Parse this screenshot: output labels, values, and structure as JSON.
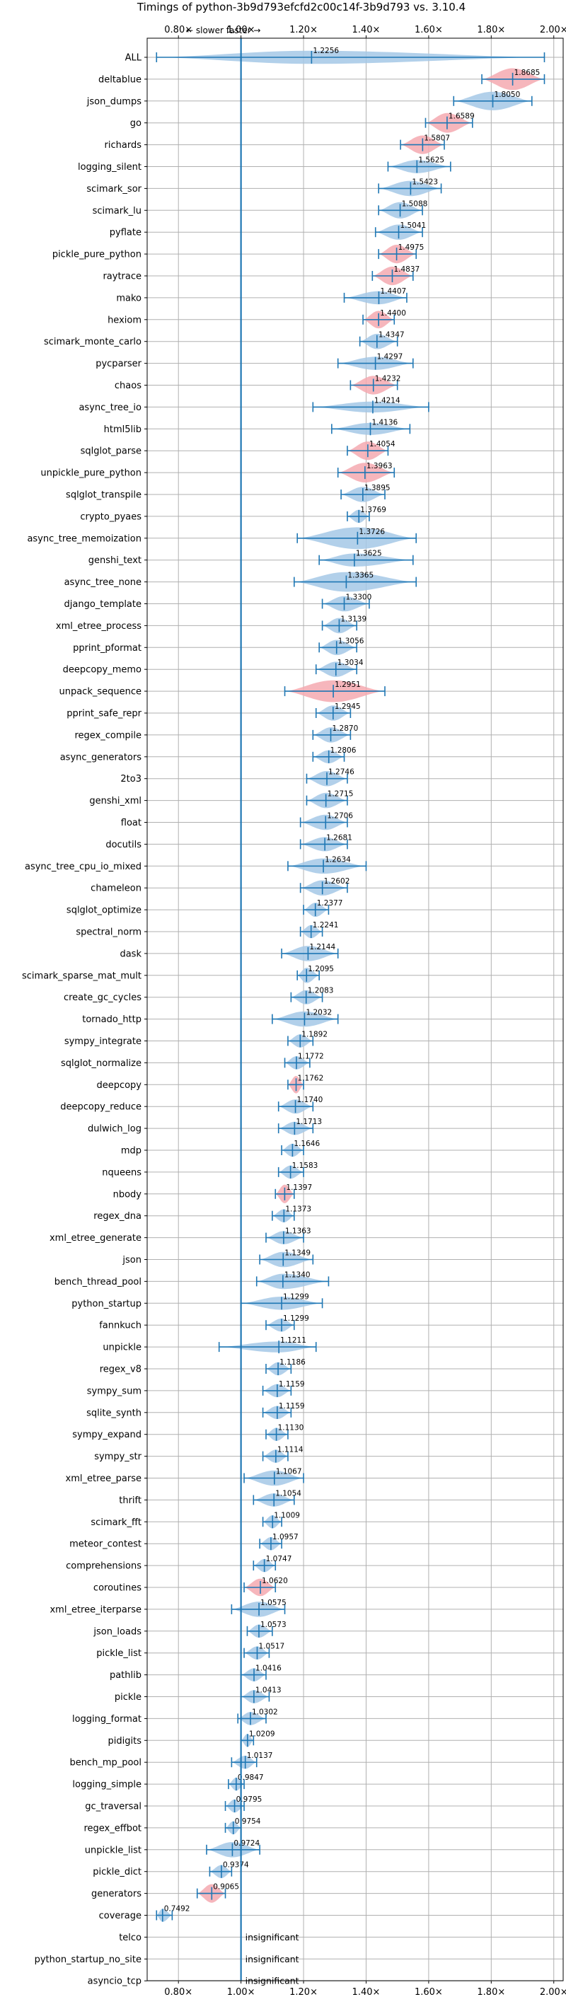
{
  "chart_data": {
    "type": "violin",
    "title": "Timings of python-3b9d793efcfd2c00c14f-3b9d793 vs. 3.10.4",
    "annotation": "← slower  faster →",
    "x_ticks": [
      "0.80×",
      "1.00×",
      "1.20×",
      "1.40×",
      "1.60×",
      "1.80×",
      "2.00×"
    ],
    "x_tick_values": [
      0.8,
      1.0,
      1.2,
      1.4,
      1.6,
      1.8,
      2.0
    ],
    "xlim": [
      0.7,
      2.03
    ],
    "reference_x": 1.0,
    "grid": true,
    "colors": {
      "faster": "#a4c8e6",
      "slower": "#f4a9b0",
      "line": "#1f77b4",
      "grid": "#b0b0b0"
    },
    "insignificant_label": "insignificant",
    "benchmarks": [
      {
        "name": "ALL",
        "value": "1.2256",
        "mean": 1.2256,
        "min": 0.73,
        "max": 1.97,
        "h": 0.6,
        "color": "faster"
      },
      {
        "name": "deltablue",
        "value": "1.8685",
        "mean": 1.8685,
        "min": 1.77,
        "max": 1.97,
        "h": 1.0,
        "color": "slower"
      },
      {
        "name": "json_dumps",
        "value": "1.8050",
        "mean": 1.805,
        "min": 1.68,
        "max": 1.93,
        "h": 0.85,
        "color": "faster"
      },
      {
        "name": "go",
        "value": "1.6589",
        "mean": 1.6589,
        "min": 1.59,
        "max": 1.74,
        "h": 0.9,
        "color": "slower"
      },
      {
        "name": "richards",
        "value": "1.5807",
        "mean": 1.5807,
        "min": 1.51,
        "max": 1.65,
        "h": 0.85,
        "color": "slower"
      },
      {
        "name": "logging_silent",
        "value": "1.5625",
        "mean": 1.5625,
        "min": 1.47,
        "max": 1.67,
        "h": 0.6,
        "color": "faster"
      },
      {
        "name": "scimark_sor",
        "value": "1.5423",
        "mean": 1.5423,
        "min": 1.44,
        "max": 1.64,
        "h": 0.7,
        "color": "faster"
      },
      {
        "name": "scimark_lu",
        "value": "1.5088",
        "mean": 1.5088,
        "min": 1.44,
        "max": 1.58,
        "h": 0.75,
        "color": "faster"
      },
      {
        "name": "pyflate",
        "value": "1.5041",
        "mean": 1.5041,
        "min": 1.43,
        "max": 1.58,
        "h": 0.7,
        "color": "faster"
      },
      {
        "name": "pickle_pure_python",
        "value": "1.4975",
        "mean": 1.4975,
        "min": 1.44,
        "max": 1.56,
        "h": 0.85,
        "color": "slower"
      },
      {
        "name": "raytrace",
        "value": "1.4837",
        "mean": 1.4837,
        "min": 1.42,
        "max": 1.55,
        "h": 0.85,
        "color": "slower"
      },
      {
        "name": "mako",
        "value": "1.4407",
        "mean": 1.4407,
        "min": 1.33,
        "max": 1.53,
        "h": 0.6,
        "color": "faster"
      },
      {
        "name": "hexiom",
        "value": "1.4400",
        "mean": 1.44,
        "min": 1.39,
        "max": 1.49,
        "h": 0.8,
        "color": "slower"
      },
      {
        "name": "scimark_monte_carlo",
        "value": "1.4347",
        "mean": 1.4347,
        "min": 1.38,
        "max": 1.5,
        "h": 0.7,
        "color": "faster"
      },
      {
        "name": "pycparser",
        "value": "1.4297",
        "mean": 1.4297,
        "min": 1.31,
        "max": 1.55,
        "h": 0.6,
        "color": "faster"
      },
      {
        "name": "chaos",
        "value": "1.4232",
        "mean": 1.4232,
        "min": 1.35,
        "max": 1.5,
        "h": 0.85,
        "color": "slower"
      },
      {
        "name": "async_tree_io",
        "value": "1.4214",
        "mean": 1.4214,
        "min": 1.23,
        "max": 1.6,
        "h": 0.5,
        "color": "faster"
      },
      {
        "name": "html5lib",
        "value": "1.4136",
        "mean": 1.4136,
        "min": 1.29,
        "max": 1.54,
        "h": 0.55,
        "color": "faster"
      },
      {
        "name": "sqlglot_parse",
        "value": "1.4054",
        "mean": 1.4054,
        "min": 1.34,
        "max": 1.47,
        "h": 0.85,
        "color": "slower"
      },
      {
        "name": "unpickle_pure_python",
        "value": "1.3963",
        "mean": 1.3963,
        "min": 1.31,
        "max": 1.49,
        "h": 0.9,
        "color": "slower"
      },
      {
        "name": "sqlglot_transpile",
        "value": "1.3895",
        "mean": 1.3895,
        "min": 1.32,
        "max": 1.46,
        "h": 0.7,
        "color": "faster"
      },
      {
        "name": "crypto_pyaes",
        "value": "1.3769",
        "mean": 1.3769,
        "min": 1.34,
        "max": 1.41,
        "h": 0.6,
        "color": "faster"
      },
      {
        "name": "async_tree_memoization",
        "value": "1.3726",
        "mean": 1.3726,
        "min": 1.18,
        "max": 1.56,
        "h": 1.0,
        "color": "faster"
      },
      {
        "name": "genshi_text",
        "value": "1.3625",
        "mean": 1.3625,
        "min": 1.25,
        "max": 1.55,
        "h": 0.6,
        "color": "faster"
      },
      {
        "name": "async_tree_none",
        "value": "1.3365",
        "mean": 1.3365,
        "min": 1.17,
        "max": 1.56,
        "h": 0.9,
        "color": "faster"
      },
      {
        "name": "django_template",
        "value": "1.3300",
        "mean": 1.33,
        "min": 1.26,
        "max": 1.41,
        "h": 0.7,
        "color": "faster"
      },
      {
        "name": "xml_etree_process",
        "value": "1.3139",
        "mean": 1.3139,
        "min": 1.26,
        "max": 1.37,
        "h": 0.7,
        "color": "faster"
      },
      {
        "name": "pprint_pformat",
        "value": "1.3056",
        "mean": 1.3056,
        "min": 1.25,
        "max": 1.37,
        "h": 0.7,
        "color": "faster"
      },
      {
        "name": "deepcopy_memo",
        "value": "1.3034",
        "mean": 1.3034,
        "min": 1.24,
        "max": 1.37,
        "h": 0.7,
        "color": "faster"
      },
      {
        "name": "unpack_sequence",
        "value": "1.2951",
        "mean": 1.2951,
        "min": 1.14,
        "max": 1.46,
        "h": 1.0,
        "color": "slower"
      },
      {
        "name": "pprint_safe_repr",
        "value": "1.2945",
        "mean": 1.2945,
        "min": 1.24,
        "max": 1.35,
        "h": 0.7,
        "color": "faster"
      },
      {
        "name": "regex_compile",
        "value": "1.2870",
        "mean": 1.287,
        "min": 1.23,
        "max": 1.35,
        "h": 0.7,
        "color": "faster"
      },
      {
        "name": "async_generators",
        "value": "1.2806",
        "mean": 1.2806,
        "min": 1.23,
        "max": 1.33,
        "h": 0.6,
        "color": "faster"
      },
      {
        "name": "2to3",
        "value": "1.2746",
        "mean": 1.2746,
        "min": 1.21,
        "max": 1.34,
        "h": 0.7,
        "color": "faster"
      },
      {
        "name": "genshi_xml",
        "value": "1.2715",
        "mean": 1.2715,
        "min": 1.21,
        "max": 1.34,
        "h": 0.7,
        "color": "faster"
      },
      {
        "name": "float",
        "value": "1.2706",
        "mean": 1.2706,
        "min": 1.19,
        "max": 1.34,
        "h": 0.7,
        "color": "faster"
      },
      {
        "name": "docutils",
        "value": "1.2681",
        "mean": 1.2681,
        "min": 1.19,
        "max": 1.34,
        "h": 0.65,
        "color": "faster"
      },
      {
        "name": "async_tree_cpu_io_mixed",
        "value": "1.2634",
        "mean": 1.2634,
        "min": 1.15,
        "max": 1.4,
        "h": 0.7,
        "color": "faster"
      },
      {
        "name": "chameleon",
        "value": "1.2602",
        "mean": 1.2602,
        "min": 1.19,
        "max": 1.34,
        "h": 0.7,
        "color": "faster"
      },
      {
        "name": "sqlglot_optimize",
        "value": "1.2377",
        "mean": 1.2377,
        "min": 1.2,
        "max": 1.28,
        "h": 0.65,
        "color": "faster"
      },
      {
        "name": "spectral_norm",
        "value": "1.2241",
        "mean": 1.2241,
        "min": 1.19,
        "max": 1.26,
        "h": 0.6,
        "color": "faster"
      },
      {
        "name": "dask",
        "value": "1.2144",
        "mean": 1.2144,
        "min": 1.13,
        "max": 1.31,
        "h": 0.7,
        "color": "faster"
      },
      {
        "name": "scimark_sparse_mat_mult",
        "value": "1.2095",
        "mean": 1.2095,
        "min": 1.18,
        "max": 1.25,
        "h": 0.7,
        "color": "faster"
      },
      {
        "name": "create_gc_cycles",
        "value": "1.2083",
        "mean": 1.2083,
        "min": 1.16,
        "max": 1.26,
        "h": 0.65,
        "color": "faster"
      },
      {
        "name": "tornado_http",
        "value": "1.2032",
        "mean": 1.2032,
        "min": 1.1,
        "max": 1.31,
        "h": 0.7,
        "color": "faster"
      },
      {
        "name": "sympy_integrate",
        "value": "1.1892",
        "mean": 1.1892,
        "min": 1.15,
        "max": 1.23,
        "h": 0.6,
        "color": "faster"
      },
      {
        "name": "sqlglot_normalize",
        "value": "1.1772",
        "mean": 1.1772,
        "min": 1.14,
        "max": 1.22,
        "h": 0.6,
        "color": "faster"
      },
      {
        "name": "deepcopy",
        "value": "1.1762",
        "mean": 1.1762,
        "min": 1.15,
        "max": 1.2,
        "h": 0.8,
        "color": "slower"
      },
      {
        "name": "deepcopy_reduce",
        "value": "1.1740",
        "mean": 1.174,
        "min": 1.12,
        "max": 1.23,
        "h": 0.65,
        "color": "faster"
      },
      {
        "name": "dulwich_log",
        "value": "1.1713",
        "mean": 1.1713,
        "min": 1.12,
        "max": 1.23,
        "h": 0.6,
        "color": "faster"
      },
      {
        "name": "mdp",
        "value": "1.1646",
        "mean": 1.1646,
        "min": 1.13,
        "max": 1.2,
        "h": 0.6,
        "color": "faster"
      },
      {
        "name": "nqueens",
        "value": "1.1583",
        "mean": 1.1583,
        "min": 1.12,
        "max": 1.2,
        "h": 0.6,
        "color": "faster"
      },
      {
        "name": "nbody",
        "value": "1.1397",
        "mean": 1.1397,
        "min": 1.11,
        "max": 1.17,
        "h": 0.85,
        "color": "slower"
      },
      {
        "name": "regex_dna",
        "value": "1.1373",
        "mean": 1.1373,
        "min": 1.1,
        "max": 1.17,
        "h": 0.6,
        "color": "faster"
      },
      {
        "name": "xml_etree_generate",
        "value": "1.1363",
        "mean": 1.1363,
        "min": 1.08,
        "max": 1.2,
        "h": 0.6,
        "color": "faster"
      },
      {
        "name": "json",
        "value": "1.1349",
        "mean": 1.1349,
        "min": 1.06,
        "max": 1.23,
        "h": 0.7,
        "color": "faster"
      },
      {
        "name": "bench_thread_pool",
        "value": "1.1340",
        "mean": 1.134,
        "min": 1.05,
        "max": 1.28,
        "h": 0.7,
        "color": "faster"
      },
      {
        "name": "python_startup",
        "value": "1.1299",
        "mean": 1.1299,
        "min": 1.0,
        "max": 1.26,
        "h": 0.6,
        "color": "faster"
      },
      {
        "name": "fannkuch",
        "value": "1.1299",
        "mean": 1.1299,
        "min": 1.08,
        "max": 1.17,
        "h": 0.6,
        "color": "faster"
      },
      {
        "name": "unpickle",
        "value": "1.1211",
        "mean": 1.1211,
        "min": 0.93,
        "max": 1.24,
        "h": 0.5,
        "color": "faster"
      },
      {
        "name": "regex_v8",
        "value": "1.1186",
        "mean": 1.1186,
        "min": 1.08,
        "max": 1.16,
        "h": 0.6,
        "color": "faster"
      },
      {
        "name": "sympy_sum",
        "value": "1.1159",
        "mean": 1.1159,
        "min": 1.07,
        "max": 1.16,
        "h": 0.6,
        "color": "faster"
      },
      {
        "name": "sqlite_synth",
        "value": "1.1159",
        "mean": 1.1159,
        "min": 1.07,
        "max": 1.16,
        "h": 0.6,
        "color": "faster"
      },
      {
        "name": "sympy_expand",
        "value": "1.1130",
        "mean": 1.113,
        "min": 1.08,
        "max": 1.15,
        "h": 0.6,
        "color": "faster"
      },
      {
        "name": "sympy_str",
        "value": "1.1114",
        "mean": 1.1114,
        "min": 1.07,
        "max": 1.15,
        "h": 0.6,
        "color": "faster"
      },
      {
        "name": "xml_etree_parse",
        "value": "1.1067",
        "mean": 1.1067,
        "min": 1.01,
        "max": 1.2,
        "h": 0.7,
        "color": "faster"
      },
      {
        "name": "thrift",
        "value": "1.1054",
        "mean": 1.1054,
        "min": 1.04,
        "max": 1.17,
        "h": 0.6,
        "color": "faster"
      },
      {
        "name": "scimark_fft",
        "value": "1.1009",
        "mean": 1.1009,
        "min": 1.07,
        "max": 1.13,
        "h": 0.6,
        "color": "faster"
      },
      {
        "name": "meteor_contest",
        "value": "1.0957",
        "mean": 1.0957,
        "min": 1.06,
        "max": 1.13,
        "h": 0.6,
        "color": "faster"
      },
      {
        "name": "comprehensions",
        "value": "1.0747",
        "mean": 1.0747,
        "min": 1.04,
        "max": 1.11,
        "h": 0.6,
        "color": "faster"
      },
      {
        "name": "coroutines",
        "value": "1.0620",
        "mean": 1.062,
        "min": 1.01,
        "max": 1.11,
        "h": 0.8,
        "color": "slower"
      },
      {
        "name": "xml_etree_iterparse",
        "value": "1.0575",
        "mean": 1.0575,
        "min": 0.97,
        "max": 1.14,
        "h": 0.7,
        "color": "faster"
      },
      {
        "name": "json_loads",
        "value": "1.0573",
        "mean": 1.0573,
        "min": 1.02,
        "max": 1.1,
        "h": 0.6,
        "color": "faster"
      },
      {
        "name": "pickle_list",
        "value": "1.0517",
        "mean": 1.0517,
        "min": 1.01,
        "max": 1.09,
        "h": 0.6,
        "color": "faster"
      },
      {
        "name": "pathlib",
        "value": "1.0416",
        "mean": 1.0416,
        "min": 1.0,
        "max": 1.08,
        "h": 0.6,
        "color": "faster"
      },
      {
        "name": "pickle",
        "value": "1.0413",
        "mean": 1.0413,
        "min": 1.0,
        "max": 1.09,
        "h": 0.6,
        "color": "faster"
      },
      {
        "name": "logging_format",
        "value": "1.0302",
        "mean": 1.0302,
        "min": 0.99,
        "max": 1.08,
        "h": 0.6,
        "color": "faster"
      },
      {
        "name": "pidigits",
        "value": "1.0209",
        "mean": 1.0209,
        "min": 1.0,
        "max": 1.04,
        "h": 0.6,
        "color": "faster"
      },
      {
        "name": "bench_mp_pool",
        "value": "1.0137",
        "mean": 1.0137,
        "min": 0.97,
        "max": 1.05,
        "h": 0.6,
        "color": "faster"
      },
      {
        "name": "logging_simple",
        "value": "0.9847",
        "mean": 0.9847,
        "min": 0.96,
        "max": 1.01,
        "h": 0.6,
        "color": "faster"
      },
      {
        "name": "gc_traversal",
        "value": "0.9795",
        "mean": 0.9795,
        "min": 0.95,
        "max": 1.01,
        "h": 0.6,
        "color": "faster"
      },
      {
        "name": "regex_effbot",
        "value": "0.9754",
        "mean": 0.9754,
        "min": 0.95,
        "max": 1.0,
        "h": 0.6,
        "color": "faster"
      },
      {
        "name": "unpickle_list",
        "value": "0.9724",
        "mean": 0.9724,
        "min": 0.89,
        "max": 1.06,
        "h": 0.7,
        "color": "faster"
      },
      {
        "name": "pickle_dict",
        "value": "0.9374",
        "mean": 0.9374,
        "min": 0.9,
        "max": 0.97,
        "h": 0.6,
        "color": "faster"
      },
      {
        "name": "generators",
        "value": "0.9065",
        "mean": 0.9065,
        "min": 0.86,
        "max": 0.95,
        "h": 0.85,
        "color": "slower"
      },
      {
        "name": "coverage",
        "value": "0.7492",
        "mean": 0.7492,
        "min": 0.73,
        "max": 0.78,
        "h": 0.6,
        "color": "faster"
      },
      {
        "name": "telco",
        "value": null,
        "insignificant": true
      },
      {
        "name": "python_startup_no_site",
        "value": null,
        "insignificant": true
      },
      {
        "name": "asyncio_tcp",
        "value": null,
        "insignificant": true
      }
    ]
  }
}
